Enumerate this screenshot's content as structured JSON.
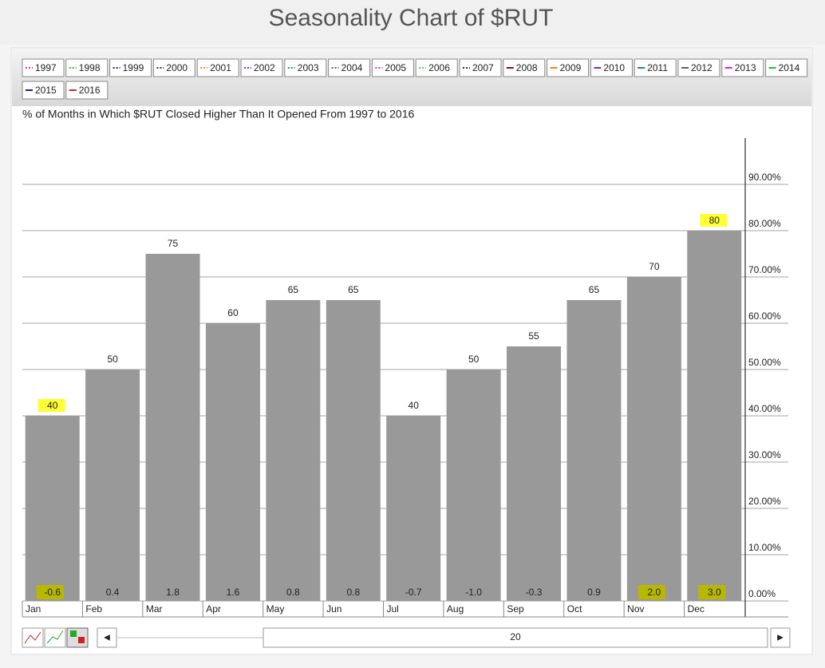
{
  "page_title": "Seasonality Chart of $RUT",
  "legend": [
    {
      "label": "1997",
      "color": "#e020e0",
      "style": "dotted"
    },
    {
      "label": "1998",
      "color": "#20c020",
      "style": "dotted"
    },
    {
      "label": "1999",
      "color": "#202090",
      "style": "dotted"
    },
    {
      "label": "2000",
      "color": "#8b1010",
      "style": "dotted"
    },
    {
      "label": "2001",
      "color": "#ff7f20",
      "style": "dotted"
    },
    {
      "label": "2002",
      "color": "#9020d0",
      "style": "dotted"
    },
    {
      "label": "2003",
      "color": "#109090",
      "style": "dotted"
    },
    {
      "label": "2004",
      "color": "#606060",
      "style": "dotted"
    },
    {
      "label": "2005",
      "color": "#e020e0",
      "style": "dotted"
    },
    {
      "label": "2006",
      "color": "#40e040",
      "style": "dotted"
    },
    {
      "label": "2007",
      "color": "#202090",
      "style": "dotted"
    },
    {
      "label": "2008",
      "color": "#8b1010",
      "style": "solid"
    },
    {
      "label": "2009",
      "color": "#ff7f20",
      "style": "solid"
    },
    {
      "label": "2010",
      "color": "#9020d0",
      "style": "solid"
    },
    {
      "label": "2011",
      "color": "#109090",
      "style": "solid"
    },
    {
      "label": "2012",
      "color": "#606060",
      "style": "solid"
    },
    {
      "label": "2013",
      "color": "#e020e0",
      "style": "solid"
    },
    {
      "label": "2014",
      "color": "#20c020",
      "style": "solid"
    },
    {
      "label": "2015",
      "color": "#202090",
      "style": "solid"
    },
    {
      "label": "2016",
      "color": "#e02020",
      "style": "solid"
    }
  ],
  "slider_value": 20,
  "chart_data": {
    "type": "bar",
    "title": "% of Months in Which $RUT Closed Higher Than It Opened From 1997 to 2016",
    "categories": [
      "Jan",
      "Feb",
      "Mar",
      "Apr",
      "May",
      "Jun",
      "Jul",
      "Aug",
      "Sep",
      "Oct",
      "Nov",
      "Dec"
    ],
    "values": [
      40,
      50,
      75,
      60,
      65,
      65,
      40,
      50,
      55,
      65,
      70,
      80
    ],
    "color": "#999999",
    "changes": {
      "values": [
        -0.6,
        0.4,
        1.8,
        1.6,
        0.8,
        0.8,
        -0.7,
        -1,
        -0.3,
        0.9,
        2,
        3
      ],
      "value_labels": [
        "-0.6",
        "0.4",
        "1.8",
        "1.6",
        "0.8",
        "0.8",
        "-0.7",
        "-1.0",
        "-0.3",
        "0.9",
        "2.0",
        "3.0"
      ]
    },
    "ylim": [
      0,
      100
    ],
    "yticks": [
      {
        "value": 0,
        "label": "0.00%"
      },
      {
        "value": 10,
        "label": "10.00%"
      },
      {
        "value": 20,
        "label": "20.00%"
      },
      {
        "value": 30,
        "label": "30.00%"
      },
      {
        "value": 40,
        "label": "40.00%"
      },
      {
        "value": 50,
        "label": "50.00%"
      },
      {
        "value": 60,
        "label": "60.00%"
      },
      {
        "value": 70,
        "label": "70.00%"
      },
      {
        "value": 80,
        "label": "80.00%"
      },
      {
        "value": 90,
        "label": "90.00%"
      }
    ],
    "grid": true,
    "y_axis_side": "right"
  }
}
